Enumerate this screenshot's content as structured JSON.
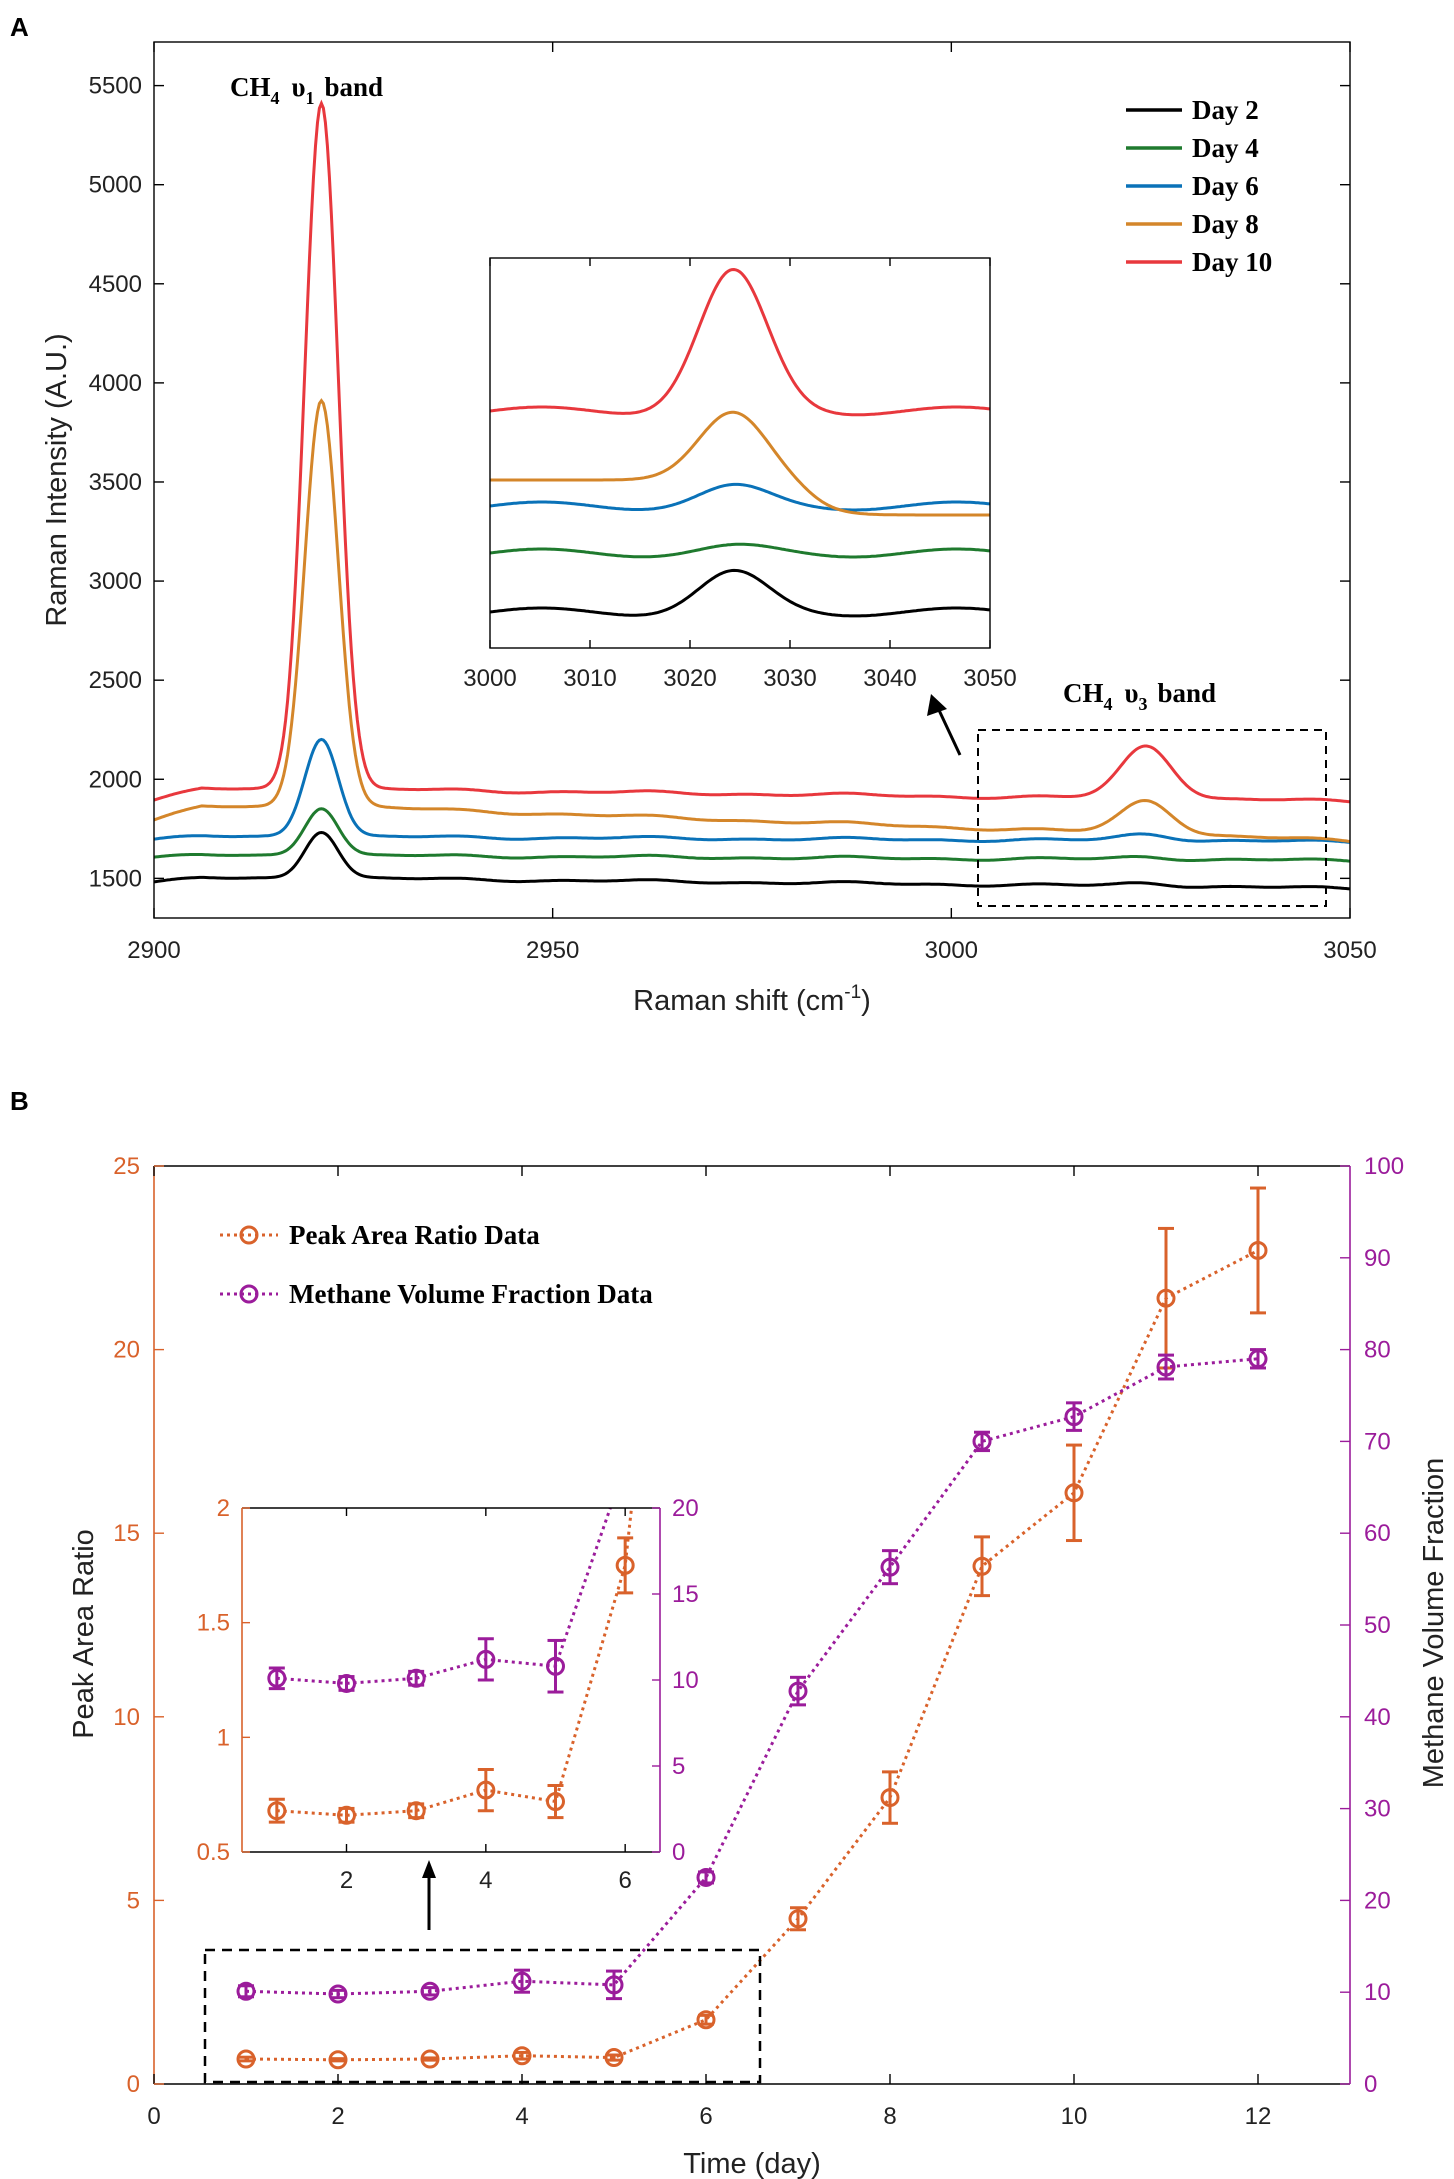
{
  "chart_data": [
    {
      "panel": "A",
      "type": "line",
      "xlabel": "Raman shift (cm",
      "xlabel_sup": "-1",
      "xlabel_end": ")",
      "ylabel": "Raman Intensity (A.U.)",
      "xlim": [
        2900,
        3050
      ],
      "ylim": [
        1300,
        5720
      ],
      "xticks": [
        2900,
        2950,
        3000,
        3050
      ],
      "yticks": [
        1500,
        2000,
        2500,
        3000,
        3500,
        4000,
        4500,
        5000,
        5500
      ],
      "legend_position": "top-right",
      "series": [
        {
          "name": "Day 2",
          "color": "#000000",
          "baseline": 1500,
          "peak1": 1740,
          "peak2": 1478,
          "end": 1450,
          "gap_offset": -18
        },
        {
          "name": "Day 4",
          "color": "#1f7a2e",
          "baseline": 1615,
          "peak1": 1860,
          "peak2": 1610,
          "end": 1590,
          "gap_offset": -8
        },
        {
          "name": "Day 6",
          "color": "#0a72b8",
          "baseline": 1710,
          "peak1": 2210,
          "peak2": 1725,
          "end": 1685,
          "gap_offset": -12
        },
        {
          "name": "Day 8",
          "color": "#d4862a",
          "baseline": 1860,
          "peak1": 3920,
          "peak2": 1895,
          "end": 1690,
          "gap_offset": -65
        },
        {
          "name": "Day 10",
          "color": "#e8383d",
          "baseline": 1950,
          "peak1": 5420,
          "peak2": 2170,
          "end": 1890,
          "gap_offset": -55
        }
      ],
      "annotations": {
        "band1": {
          "main": "CH",
          "sub": "4",
          "greek": "υ",
          "greek_sub": "1",
          "tail": "band"
        },
        "band3": {
          "main": "CH",
          "sub": "4",
          "greek": "υ",
          "greek_sub": "3",
          "tail": "band"
        }
      },
      "inset": {
        "xlim": [
          3000,
          3050
        ],
        "xticks": [
          3000,
          3010,
          3020,
          3030,
          3040,
          3050
        ]
      }
    },
    {
      "panel": "B",
      "type": "line",
      "xlabel": "Time (day)",
      "ylabel_left": "Peak Area Ratio",
      "ylabel_right": "Methane Volume Fraction",
      "xlim": [
        0,
        13
      ],
      "ylim_left": [
        0,
        25
      ],
      "ylim_right": [
        0,
        100
      ],
      "xticks": [
        0,
        2,
        4,
        6,
        8,
        10,
        12
      ],
      "yticks_left": [
        0,
        5,
        10,
        15,
        20,
        25
      ],
      "yticks_right": [
        0,
        10,
        20,
        30,
        40,
        50,
        60,
        70,
        80,
        90,
        100
      ],
      "legend_position": "top-left",
      "series": [
        {
          "name": "Peak Area Ratio Data",
          "color": "#d9622b",
          "axis": "left",
          "x": [
            1,
            2,
            3,
            4,
            5,
            6,
            7,
            8,
            9,
            10,
            11,
            12
          ],
          "y": [
            0.68,
            0.66,
            0.68,
            0.77,
            0.72,
            1.75,
            4.5,
            7.8,
            14.1,
            16.1,
            21.4,
            22.7
          ],
          "err": [
            0.05,
            0.03,
            0.03,
            0.09,
            0.07,
            0.12,
            0.3,
            0.7,
            0.8,
            1.3,
            1.9,
            1.7
          ]
        },
        {
          "name": "Methane Volume Fraction Data",
          "color": "#9b1c9b",
          "axis": "right",
          "x": [
            1,
            2,
            3,
            4,
            5,
            6,
            7,
            8,
            9,
            10,
            11,
            12
          ],
          "y": [
            10.1,
            9.8,
            10.1,
            11.2,
            10.8,
            22.5,
            42.8,
            56.3,
            70.0,
            72.7,
            78.1,
            79.0
          ],
          "err": [
            0.6,
            0.4,
            0.4,
            1.2,
            1.5,
            0.6,
            1.5,
            1.8,
            1.0,
            1.5,
            1.3,
            1.0
          ]
        }
      ],
      "inset": {
        "xlim": [
          0.5,
          6.5
        ],
        "ylim_left": [
          0.5,
          2
        ],
        "ylim_right": [
          0,
          20
        ],
        "xticks": [
          2,
          4,
          6
        ],
        "yticks_left": [
          0.5,
          1,
          1.5,
          2
        ],
        "yticks_left_labels": [
          "0.5",
          "1",
          "1.5",
          "2"
        ],
        "yticks_right": [
          0,
          5,
          10,
          15,
          20
        ]
      }
    }
  ]
}
